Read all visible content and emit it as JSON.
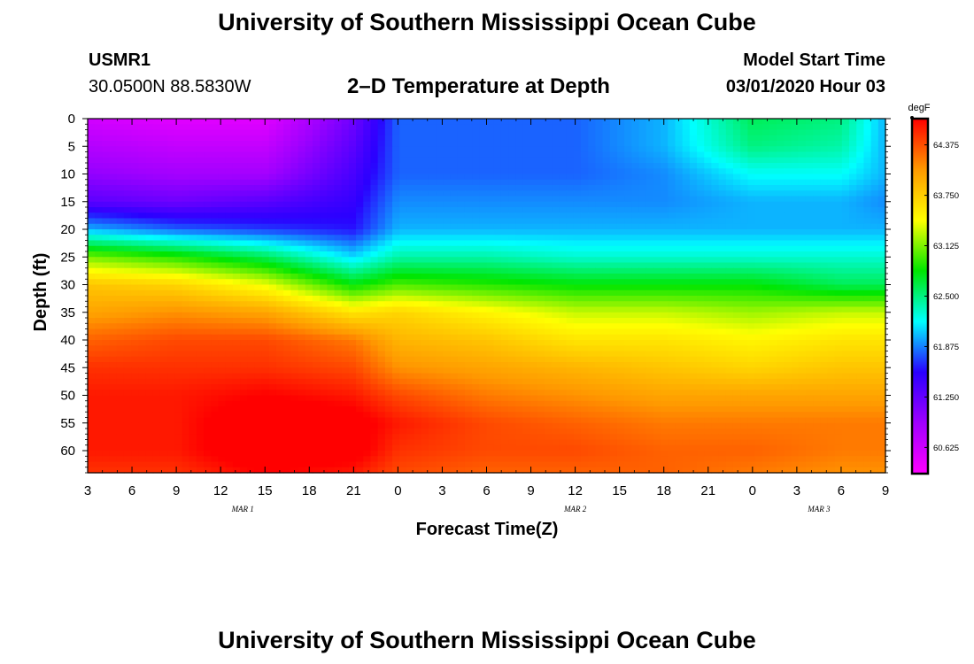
{
  "header": {
    "title": "University of Southern Mississippi Ocean Cube",
    "station": "USMR1",
    "coords": "30.0500N 88.5830W",
    "subtitle": "2–D Temperature at Depth",
    "model_start_label": "Model Start Time",
    "model_start_value": "03/01/2020 Hour 03"
  },
  "footer": {
    "title": "University of Southern Mississippi Ocean Cube"
  },
  "chart_data": {
    "type": "heatmap",
    "title": "2–D Temperature at Depth",
    "xlabel": "Forecast Time(Z)",
    "ylabel": "Depth (ft)",
    "x_ticks": [
      "3",
      "6",
      "9",
      "12",
      "15",
      "18",
      "21",
      "0",
      "3",
      "6",
      "9",
      "12",
      "15",
      "18",
      "21",
      "0",
      "3",
      "6",
      "9"
    ],
    "x_range_hours": [
      0,
      54
    ],
    "date_labels": [
      {
        "text": "MAR 1",
        "hour": 10.5
      },
      {
        "text": "MAR 2",
        "hour": 33
      },
      {
        "text": "MAR 3",
        "hour": 49.5
      }
    ],
    "y_ticks": [
      "0",
      "5",
      "10",
      "15",
      "20",
      "25",
      "30",
      "35",
      "40",
      "45",
      "50",
      "55",
      "60"
    ],
    "y_range_ft": [
      0,
      64
    ],
    "colorbar": {
      "unit": "degF",
      "min": 60.3,
      "max": 64.7,
      "labels": [
        "64.375",
        "63.750",
        "63.125",
        "62.500",
        "61.875",
        "61.250",
        "60.625"
      ],
      "colors": [
        "#ff00ff",
        "#a000ff",
        "#2a00ff",
        "#00ffff",
        "#00e600",
        "#ffff00",
        "#ff9900",
        "#ff0000"
      ]
    },
    "depths_ft": [
      0,
      5,
      10,
      15,
      20,
      25,
      30,
      35,
      40,
      45,
      50,
      55,
      60,
      64
    ],
    "grid_note": "Temperature (degF) by depth (rows, depths_ft) and forecast hour since 03Z Mar 1 (columns, hours).",
    "hours": [
      0,
      6,
      12,
      18,
      21,
      27,
      33,
      39,
      45,
      51,
      54
    ],
    "temperature_degF": [
      [
        60.6,
        60.5,
        60.5,
        61.2,
        61.8,
        61.8,
        61.8,
        62.0,
        62.6,
        62.5,
        62.0
      ],
      [
        60.8,
        60.7,
        60.7,
        61.3,
        61.8,
        61.8,
        61.8,
        62.0,
        62.5,
        62.4,
        62.0
      ],
      [
        61.0,
        60.9,
        60.9,
        61.4,
        61.8,
        61.8,
        61.8,
        61.9,
        62.2,
        62.2,
        62.0
      ],
      [
        61.3,
        61.2,
        61.3,
        61.5,
        61.9,
        61.9,
        61.9,
        61.9,
        62.0,
        62.0,
        61.9
      ],
      [
        62.0,
        61.8,
        61.7,
        61.6,
        62.0,
        62.0,
        62.0,
        62.0,
        62.0,
        62.0,
        62.0
      ],
      [
        63.1,
        62.9,
        62.6,
        62.1,
        62.4,
        62.4,
        62.3,
        62.3,
        62.3,
        62.3,
        62.3
      ],
      [
        63.8,
        63.7,
        63.4,
        62.8,
        63.0,
        62.9,
        62.8,
        62.8,
        62.8,
        62.6,
        62.6
      ],
      [
        64.0,
        64.1,
        64.0,
        63.6,
        63.7,
        63.5,
        63.3,
        63.3,
        63.2,
        63.3,
        63.3
      ],
      [
        64.3,
        64.4,
        64.4,
        64.2,
        63.9,
        63.8,
        63.6,
        63.6,
        63.5,
        63.6,
        63.6
      ],
      [
        64.5,
        64.5,
        64.5,
        64.4,
        64.1,
        64.0,
        63.9,
        63.8,
        63.7,
        63.8,
        63.8
      ],
      [
        64.6,
        64.6,
        64.7,
        64.6,
        64.4,
        64.2,
        64.1,
        64.0,
        64.0,
        64.0,
        64.0
      ],
      [
        64.6,
        64.6,
        64.9,
        64.8,
        64.6,
        64.4,
        64.3,
        64.2,
        64.2,
        64.2,
        64.2
      ],
      [
        64.6,
        64.6,
        64.9,
        64.8,
        64.5,
        64.4,
        64.4,
        64.3,
        64.3,
        64.2,
        64.2
      ],
      [
        64.5,
        64.5,
        64.7,
        64.6,
        64.4,
        64.3,
        64.3,
        64.3,
        64.2,
        64.1,
        64.1
      ]
    ]
  }
}
